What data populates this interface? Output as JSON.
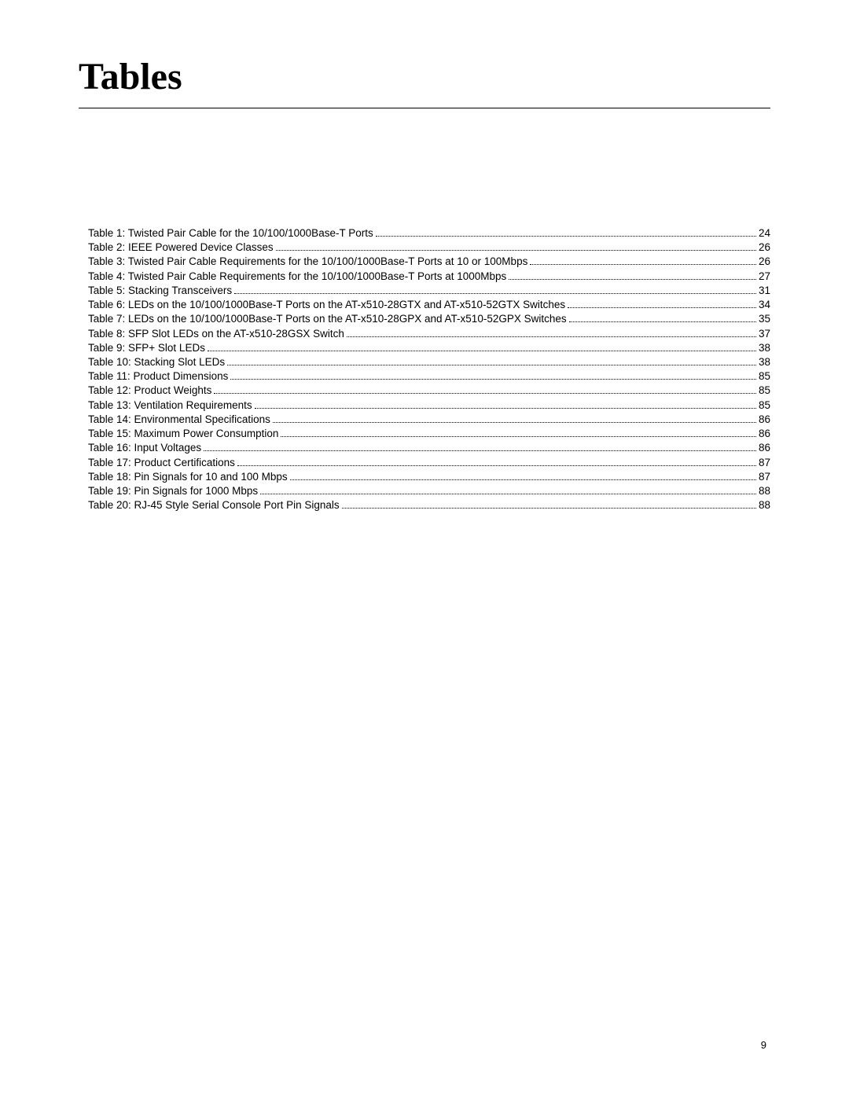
{
  "heading": "Tables",
  "page_number": "9",
  "toc": [
    {
      "label": "Table 1: Twisted Pair Cable for the 10/100/1000Base-T Ports",
      "page": "24"
    },
    {
      "label": "Table 2: IEEE Powered Device Classes",
      "page": "26"
    },
    {
      "label": "Table 3: Twisted Pair Cable Requirements for the 10/100/1000Base-T Ports at 10 or 100Mbps",
      "page": "26"
    },
    {
      "label": "Table 4: Twisted Pair Cable Requirements for the 10/100/1000Base-T Ports at 1000Mbps",
      "page": "27"
    },
    {
      "label": "Table 5: Stacking Transceivers",
      "page": "31"
    },
    {
      "label": "Table 6: LEDs on the 10/100/1000Base-T Ports on the AT-x510-28GTX and AT-x510-52GTX Switches",
      "page": "34"
    },
    {
      "label": "Table 7: LEDs on the 10/100/1000Base-T Ports on the AT-x510-28GPX and AT-x510-52GPX Switches",
      "page": "35"
    },
    {
      "label": "Table 8: SFP Slot LEDs on the AT-x510-28GSX Switch",
      "page": "37"
    },
    {
      "label": "Table 9: SFP+ Slot LEDs",
      "page": "38"
    },
    {
      "label": "Table 10: Stacking Slot LEDs",
      "page": "38"
    },
    {
      "label": "Table 11: Product Dimensions",
      "page": "85"
    },
    {
      "label": "Table 12: Product Weights",
      "page": "85"
    },
    {
      "label": "Table 13: Ventilation Requirements",
      "page": "85"
    },
    {
      "label": "Table 14: Environmental Specifications",
      "page": "86"
    },
    {
      "label": "Table 15: Maximum Power Consumption",
      "page": "86"
    },
    {
      "label": "Table 16: Input Voltages",
      "page": "86"
    },
    {
      "label": "Table 17: Product Certifications",
      "page": "87"
    },
    {
      "label": "Table 18: Pin Signals for 10 and 100 Mbps",
      "page": "87"
    },
    {
      "label": "Table 19: Pin Signals for 1000 Mbps",
      "page": "88"
    },
    {
      "label": "Table 20: RJ-45 Style Serial Console Port Pin Signals",
      "page": "88"
    }
  ]
}
